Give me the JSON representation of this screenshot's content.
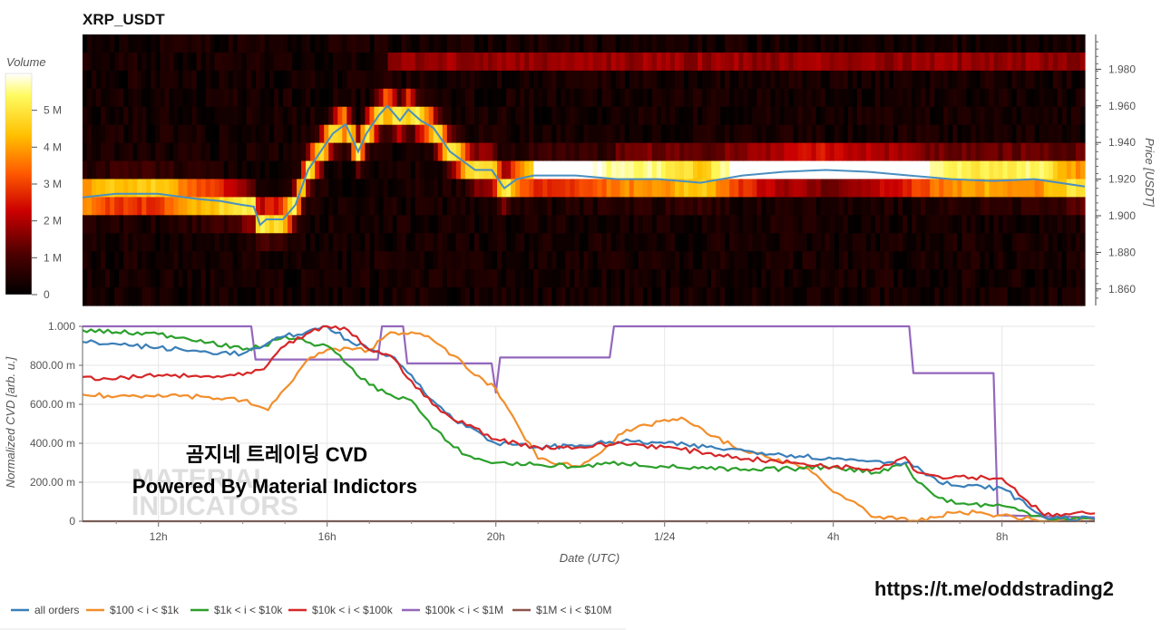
{
  "colors": {
    "all_orders": "#3a7fb8",
    "100_1k": "#f28e2b",
    "1k_10k": "#2ca02c",
    "10k_100k": "#d62728",
    "100k_1m": "#9467bd",
    "1m_10m": "#8c564b",
    "price_line": "#4a8fc0"
  },
  "overlay": {
    "line1": "곰지네 트레이딩 CVD",
    "line2": "Powered By Material Indictors",
    "watermark1": "MATERIAL",
    "watermark2": "INDICATORS"
  },
  "footer": {
    "url": "https://t.me/oddstrading2"
  },
  "chart_data": [
    {
      "type": "heatmap",
      "title": "XRP_USDT",
      "ylabel": "Price [USDT]",
      "ylim": [
        1.851,
        1.999
      ],
      "yticks": [
        "1.860",
        "1.880",
        "1.900",
        "1.920",
        "1.940",
        "1.960",
        "1.980"
      ],
      "colorbar": {
        "title": "Volume",
        "range": [
          0,
          6000000
        ],
        "ticks": [
          "0",
          "1 M",
          "2 M",
          "3 M",
          "4 M",
          "5 M"
        ]
      },
      "time_range_hours": [
        10.2,
        34.2
      ],
      "price_line": {
        "t": [
          10.2,
          11,
          12,
          13,
          13.5,
          14,
          14.3,
          14.45,
          14.6,
          15,
          15.3,
          15.6,
          15.9,
          16.2,
          16.5,
          16.8,
          17,
          17.3,
          17.5,
          17.8,
          18,
          18.3,
          18.6,
          19,
          19.3,
          19.6,
          20,
          20.3,
          20.6,
          21,
          22,
          23,
          24,
          25,
          26,
          27,
          28,
          29,
          30,
          31,
          32,
          33,
          34.2
        ],
        "price": [
          1.91,
          1.912,
          1.912,
          1.909,
          1.908,
          1.906,
          1.905,
          1.895,
          1.898,
          1.898,
          1.906,
          1.925,
          1.935,
          1.945,
          1.95,
          1.935,
          1.945,
          1.955,
          1.96,
          1.952,
          1.958,
          1.952,
          1.948,
          1.935,
          1.93,
          1.925,
          1.925,
          1.915,
          1.92,
          1.922,
          1.922,
          1.92,
          1.92,
          1.918,
          1.922,
          1.924,
          1.925,
          1.924,
          1.922,
          1.92,
          1.919,
          1.92,
          1.916
        ]
      }
    },
    {
      "type": "line",
      "title": "",
      "xlabel": "Date (UTC)",
      "ylabel": "Normalized CVD [arb. u.]",
      "ylim": [
        0,
        1
      ],
      "yticks": [
        "0",
        "200.00 m",
        "400.00 m",
        "600.00 m",
        "800.00 m",
        "1.000"
      ],
      "xlim": [
        10.2,
        34.2
      ],
      "xticks": [
        "12h",
        "16h",
        "20h",
        "1/24",
        "4h",
        "8h"
      ],
      "xtick_values": [
        12,
        16,
        20,
        24,
        28,
        32
      ],
      "series": [
        {
          "name": "all orders",
          "color_key": "all_orders",
          "t": [
            10.2,
            11,
            12,
            13,
            14,
            14.5,
            15,
            15.5,
            16,
            16.5,
            17,
            17.5,
            18,
            18.5,
            19,
            19.5,
            20,
            21,
            22,
            23,
            24,
            25,
            26,
            27,
            28,
            29,
            29.7,
            30,
            30.5,
            31,
            32,
            33,
            34.2
          ],
          "v": [
            0.92,
            0.91,
            0.89,
            0.87,
            0.86,
            0.9,
            0.95,
            0.97,
            1.0,
            0.93,
            0.88,
            0.85,
            0.75,
            0.62,
            0.52,
            0.47,
            0.4,
            0.38,
            0.39,
            0.41,
            0.4,
            0.38,
            0.36,
            0.34,
            0.32,
            0.31,
            0.3,
            0.28,
            0.2,
            0.18,
            0.17,
            0.02,
            0.01
          ]
        },
        {
          "name": "$100 < i < $1k",
          "color_key": "100_1k",
          "t": [
            10.2,
            11,
            12,
            13,
            14,
            14.6,
            15,
            15.5,
            16,
            17,
            17.5,
            18,
            18.5,
            19,
            19.5,
            20,
            20.5,
            21,
            22,
            23,
            24,
            24.5,
            25,
            26,
            27,
            27.5,
            28,
            28.5,
            29,
            29.5,
            30,
            31,
            32,
            33,
            34.2
          ],
          "v": [
            0.65,
            0.64,
            0.65,
            0.64,
            0.62,
            0.57,
            0.68,
            0.82,
            0.88,
            0.88,
            0.97,
            0.97,
            0.93,
            0.85,
            0.75,
            0.68,
            0.5,
            0.32,
            0.28,
            0.45,
            0.52,
            0.52,
            0.45,
            0.35,
            0.3,
            0.25,
            0.15,
            0.1,
            0.02,
            0.01,
            0.0,
            0.05,
            0.03,
            0.0,
            0.01
          ]
        },
        {
          "name": "$1k < i < $10k",
          "color_key": "1k_10k",
          "t": [
            10.2,
            11,
            12,
            13,
            14,
            14.5,
            15,
            15.5,
            16,
            16.5,
            17,
            17.5,
            18,
            18.5,
            19,
            19.5,
            20,
            21,
            22,
            23,
            24,
            25,
            26,
            27,
            28,
            29,
            29.7,
            30,
            30.5,
            31,
            32,
            33,
            34.2
          ],
          "v": [
            0.98,
            0.97,
            0.96,
            0.93,
            0.88,
            0.9,
            0.95,
            0.92,
            0.9,
            0.8,
            0.7,
            0.65,
            0.62,
            0.48,
            0.38,
            0.32,
            0.3,
            0.29,
            0.28,
            0.3,
            0.28,
            0.27,
            0.26,
            0.27,
            0.28,
            0.25,
            0.3,
            0.2,
            0.12,
            0.09,
            0.08,
            0.02,
            0.01
          ]
        },
        {
          "name": "$10k < i < $100k",
          "color_key": "10k_100k",
          "t": [
            10.2,
            11,
            12,
            13,
            14,
            14.5,
            15,
            15.5,
            16,
            16.5,
            17,
            17.5,
            18,
            18.5,
            19,
            19.5,
            20,
            21,
            22,
            23,
            24,
            25,
            26,
            27,
            28,
            29,
            29.7,
            30,
            30.5,
            31,
            32,
            33,
            34.2
          ],
          "v": [
            0.74,
            0.73,
            0.75,
            0.74,
            0.75,
            0.78,
            0.9,
            0.96,
            1.0,
            0.98,
            0.88,
            0.85,
            0.72,
            0.6,
            0.52,
            0.48,
            0.42,
            0.38,
            0.38,
            0.4,
            0.38,
            0.35,
            0.32,
            0.3,
            0.28,
            0.27,
            0.33,
            0.25,
            0.23,
            0.23,
            0.22,
            0.03,
            0.04
          ]
        },
        {
          "name": "$100k < i < $1M",
          "color_key": "100k_1m",
          "t": [
            10.2,
            14.2,
            14.3,
            17.2,
            17.3,
            17.8,
            17.9,
            19.9,
            20.0,
            20.1,
            22.7,
            22.8,
            27.0,
            29.8,
            29.9,
            31.8,
            31.9,
            34.2
          ],
          "v": [
            1.0,
            1.0,
            0.83,
            0.83,
            1.0,
            1.0,
            0.81,
            0.81,
            0.66,
            0.84,
            0.84,
            1.0,
            1.0,
            1.0,
            0.76,
            0.76,
            0.03,
            0.02
          ]
        },
        {
          "name": "$1M < i < $10M",
          "color_key": "1m_10m",
          "t": [
            10.2,
            34.2
          ],
          "v": [
            0.0,
            0.0
          ]
        }
      ]
    }
  ]
}
